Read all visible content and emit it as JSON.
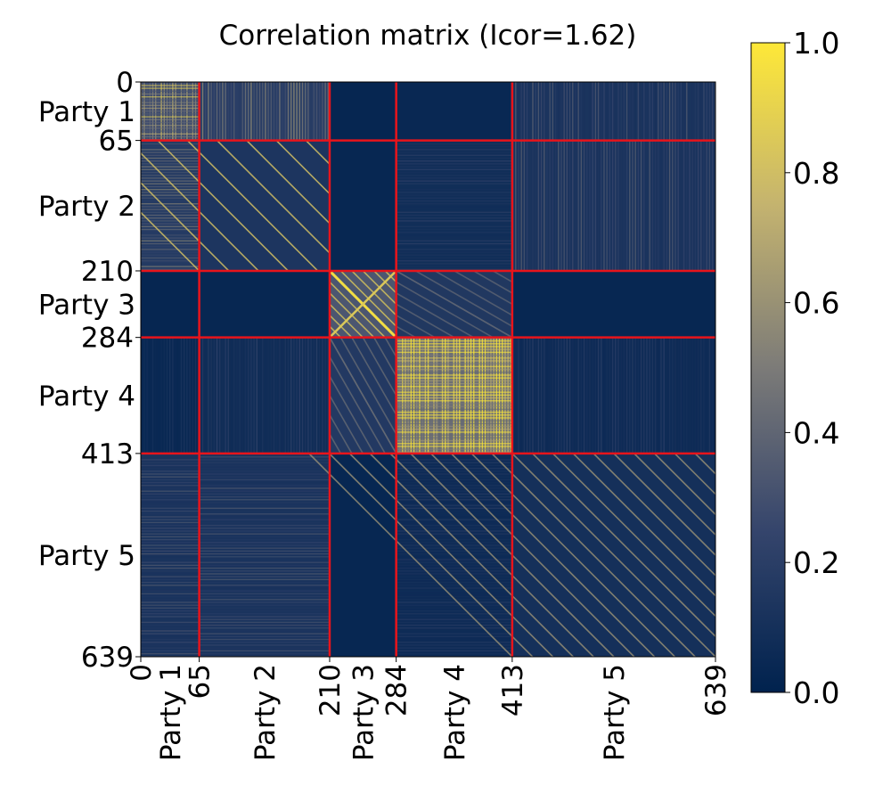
{
  "chart_data": {
    "type": "heatmap",
    "title": "Correlation matrix (Icor=1.62)",
    "xlabel": "",
    "ylabel": "",
    "colormap": "cividis",
    "colorbar": {
      "range": [
        0.0,
        1.0
      ],
      "ticks": [
        0.0,
        0.2,
        0.4,
        0.6,
        0.8,
        1.0
      ],
      "tick_labels": [
        "0.0",
        "0.2",
        "0.4",
        "0.6",
        "0.8",
        "1.0"
      ]
    },
    "matrix_size": 639,
    "boundaries": [
      0,
      65,
      210,
      284,
      413,
      639
    ],
    "boundary_labels": [
      "0",
      "65",
      "210",
      "284",
      "413",
      "639"
    ],
    "parties": [
      "Party 1",
      "Party 2",
      "Party 3",
      "Party 4",
      "Party 5"
    ],
    "separator_color": "#e8141b",
    "block_mean_correlation": [
      [
        0.5,
        0.35,
        0.05,
        0.08,
        0.22
      ],
      [
        0.32,
        0.25,
        0.06,
        0.15,
        0.22
      ],
      [
        0.05,
        0.06,
        0.6,
        0.28,
        0.06
      ],
      [
        0.08,
        0.14,
        0.3,
        0.8,
        0.12
      ],
      [
        0.22,
        0.22,
        0.06,
        0.12,
        0.18
      ]
    ],
    "block_texture": [
      [
        "noise",
        "stripes-v",
        "plain",
        "plain",
        "stripes-v"
      ],
      [
        "stripes-h",
        "diagonals",
        "plain",
        "stripes-h",
        "stripes-v"
      ],
      [
        "plain",
        "plain",
        "x-pattern",
        "wave",
        "plain"
      ],
      [
        "stripes-v",
        "stripes-v",
        "wave",
        "grid-bright",
        "stripes-v"
      ],
      [
        "stripes-h",
        "stripes-h",
        "plain",
        "stripes-h",
        "diagonals"
      ]
    ]
  }
}
